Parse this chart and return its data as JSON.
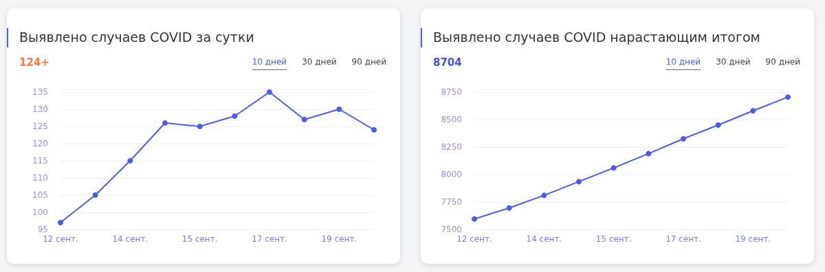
{
  "chart_data": [
    {
      "type": "line",
      "title": "Выявлено случаев COVID за сутки",
      "subtitle": "124+",
      "annotations": [
        "10 дней",
        "30 дней",
        "90 дней"
      ],
      "categories": [
        "12 сент.",
        null,
        "14 сент.",
        null,
        "15 сент.",
        null,
        "17 сент.",
        null,
        "19 сент.",
        null
      ],
      "series": [
        {
          "color": "#4a5cf6",
          "values": [
            97,
            105,
            115,
            126,
            125,
            128,
            135,
            127,
            130,
            124
          ]
        }
      ],
      "ylim": [
        95,
        135
      ],
      "yticks": [
        95,
        100,
        105,
        110,
        115,
        120,
        125,
        130,
        135
      ],
      "grid": "y",
      "marker": "circle",
      "line_style": "solid"
    },
    {
      "type": "line",
      "title": "Выявлено случаев COVID нарастающим итогом",
      "subtitle": "8704",
      "annotations": [
        "10 дней",
        "30 дней",
        "90 дней"
      ],
      "categories": [
        "12 сент.",
        null,
        "14 сент.",
        null,
        "15 сент.",
        null,
        "17 сент.",
        null,
        "19 сент.",
        null
      ],
      "series": [
        {
          "color": "#4a5cf6",
          "values": [
            7595,
            7695,
            7810,
            7935,
            8060,
            8190,
            8325,
            8450,
            8580,
            8704
          ]
        }
      ],
      "ylim": [
        7500,
        8750
      ],
      "yticks": [
        7500,
        7750,
        8000,
        8250,
        8500,
        8750
      ],
      "grid": "y",
      "marker": "circle",
      "line_style": "solid"
    }
  ]
}
